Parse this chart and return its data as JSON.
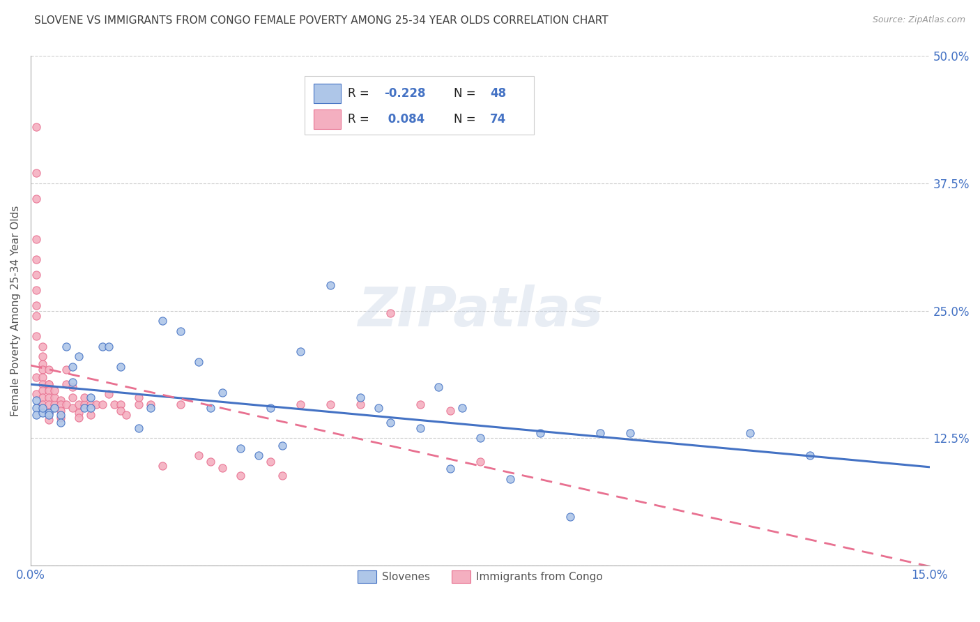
{
  "title": "SLOVENE VS IMMIGRANTS FROM CONGO FEMALE POVERTY AMONG 25-34 YEAR OLDS CORRELATION CHART",
  "source": "Source: ZipAtlas.com",
  "ylabel": "Female Poverty Among 25-34 Year Olds",
  "xmin": 0.0,
  "xmax": 0.15,
  "ymin": 0.0,
  "ymax": 0.5,
  "xticks": [
    0.0,
    0.05,
    0.1,
    0.15
  ],
  "xticklabels": [
    "0.0%",
    "",
    "",
    "15.0%"
  ],
  "yticks": [
    0.0,
    0.125,
    0.25,
    0.375,
    0.5
  ],
  "yticklabels": [
    "",
    "12.5%",
    "25.0%",
    "37.5%",
    "50.0%"
  ],
  "slovene_color": "#aec6e8",
  "congo_color": "#f4afc0",
  "slovene_edge_color": "#4472c4",
  "congo_edge_color": "#e87090",
  "slovene_line_color": "#4472c4",
  "congo_line_color": "#e87090",
  "R_slovene": -0.228,
  "N_slovene": 48,
  "R_congo": 0.084,
  "N_congo": 74,
  "background_color": "#ffffff",
  "grid_color": "#cccccc",
  "title_color": "#404040",
  "axis_tick_color": "#4472c4",
  "legend_r_color": "#4472c4",
  "slovene_x": [
    0.001,
    0.001,
    0.001,
    0.002,
    0.002,
    0.003,
    0.003,
    0.004,
    0.005,
    0.005,
    0.006,
    0.007,
    0.007,
    0.008,
    0.009,
    0.01,
    0.01,
    0.012,
    0.013,
    0.015,
    0.018,
    0.02,
    0.022,
    0.025,
    0.028,
    0.03,
    0.032,
    0.035,
    0.038,
    0.04,
    0.042,
    0.045,
    0.05,
    0.055,
    0.058,
    0.06,
    0.065,
    0.068,
    0.07,
    0.072,
    0.075,
    0.08,
    0.085,
    0.09,
    0.095,
    0.1,
    0.12,
    0.13
  ],
  "slovene_y": [
    0.155,
    0.148,
    0.162,
    0.15,
    0.155,
    0.15,
    0.148,
    0.155,
    0.148,
    0.14,
    0.215,
    0.195,
    0.18,
    0.205,
    0.155,
    0.165,
    0.155,
    0.215,
    0.215,
    0.195,
    0.135,
    0.155,
    0.24,
    0.23,
    0.2,
    0.155,
    0.17,
    0.115,
    0.108,
    0.155,
    0.118,
    0.21,
    0.275,
    0.165,
    0.155,
    0.14,
    0.135,
    0.175,
    0.095,
    0.155,
    0.125,
    0.085,
    0.13,
    0.048,
    0.13,
    0.13,
    0.13,
    0.108
  ],
  "congo_x": [
    0.001,
    0.001,
    0.001,
    0.001,
    0.001,
    0.001,
    0.001,
    0.001,
    0.001,
    0.001,
    0.001,
    0.001,
    0.002,
    0.002,
    0.002,
    0.002,
    0.002,
    0.002,
    0.002,
    0.002,
    0.002,
    0.003,
    0.003,
    0.003,
    0.003,
    0.003,
    0.003,
    0.003,
    0.003,
    0.004,
    0.004,
    0.004,
    0.005,
    0.005,
    0.005,
    0.005,
    0.006,
    0.006,
    0.006,
    0.007,
    0.007,
    0.007,
    0.008,
    0.008,
    0.008,
    0.009,
    0.009,
    0.01,
    0.01,
    0.011,
    0.012,
    0.013,
    0.014,
    0.015,
    0.015,
    0.016,
    0.018,
    0.018,
    0.02,
    0.022,
    0.025,
    0.028,
    0.03,
    0.032,
    0.035,
    0.04,
    0.042,
    0.045,
    0.05,
    0.055,
    0.06,
    0.065,
    0.07,
    0.075
  ],
  "congo_y": [
    0.43,
    0.385,
    0.36,
    0.32,
    0.3,
    0.285,
    0.27,
    0.255,
    0.245,
    0.225,
    0.185,
    0.168,
    0.215,
    0.205,
    0.198,
    0.192,
    0.185,
    0.178,
    0.172,
    0.165,
    0.158,
    0.178,
    0.192,
    0.178,
    0.172,
    0.165,
    0.158,
    0.15,
    0.143,
    0.158,
    0.165,
    0.172,
    0.162,
    0.158,
    0.152,
    0.145,
    0.158,
    0.178,
    0.192,
    0.175,
    0.165,
    0.155,
    0.158,
    0.15,
    0.145,
    0.158,
    0.165,
    0.158,
    0.148,
    0.158,
    0.158,
    0.168,
    0.158,
    0.158,
    0.152,
    0.148,
    0.158,
    0.165,
    0.158,
    0.098,
    0.158,
    0.108,
    0.102,
    0.096,
    0.088,
    0.102,
    0.088,
    0.158,
    0.158,
    0.158,
    0.248,
    0.158,
    0.152,
    0.102
  ]
}
